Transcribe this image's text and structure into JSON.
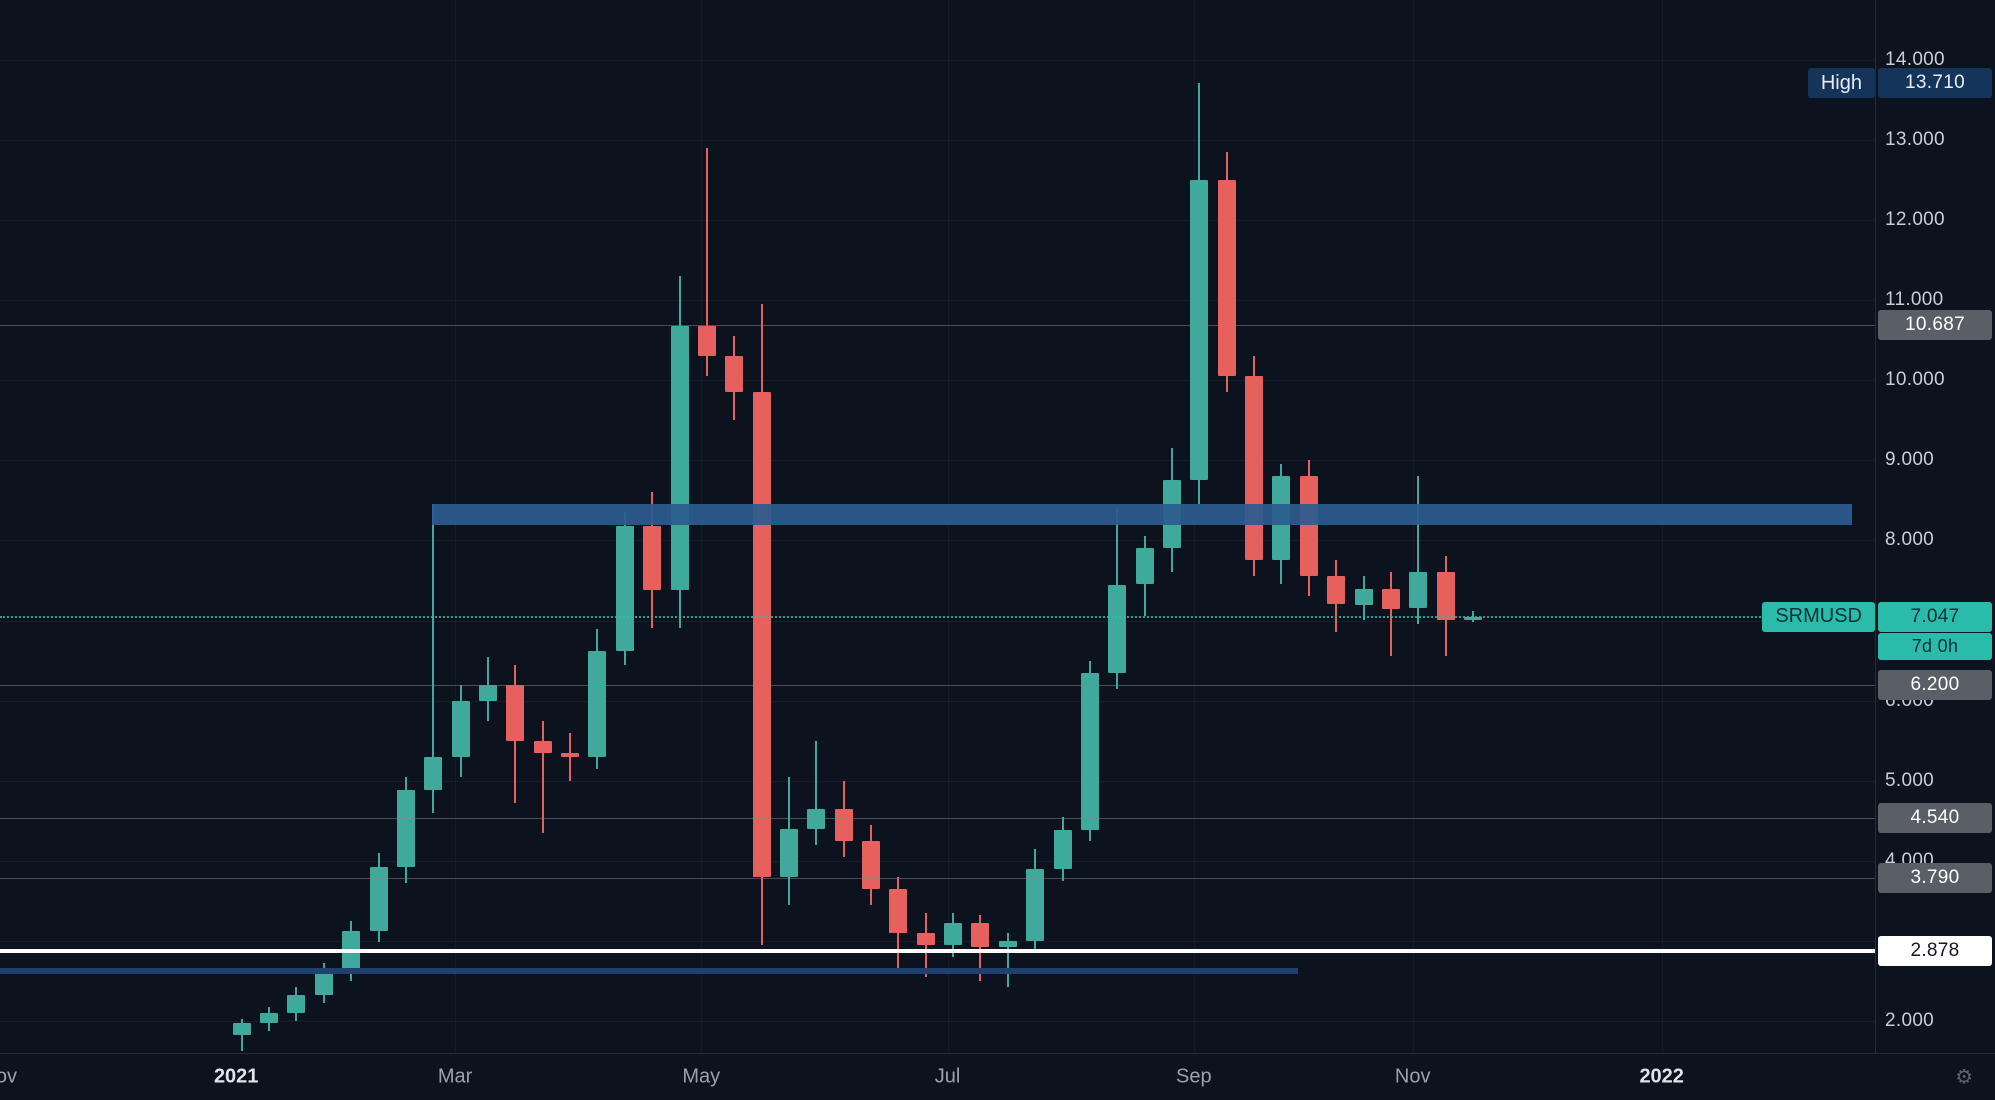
{
  "meta": {
    "symbol_label": "SRMUSD",
    "countdown_label": "7d 0h",
    "high_marker_label": "High"
  },
  "icons": {
    "settings": "⚙"
  },
  "colors": {
    "background": "#0d121f",
    "up": "#3fa99c",
    "down": "#e6615e",
    "zone": "#2b5c8f",
    "white_line": "#ffffff",
    "navy_line": "#20416e",
    "current": "#2abbaa",
    "current_text": "#073036",
    "high_badge": "#143459",
    "high_text": "#e8edf5",
    "gray_badge": "#5a5e66",
    "gray_text": "#ffffff",
    "white_badge": "#ffffff",
    "white_badge_text": "#131722",
    "level_line": "rgba(130,134,144,0.5)"
  },
  "price_axis": {
    "labels": [
      {
        "text": "14.000",
        "price": 14
      },
      {
        "text": "13.000",
        "price": 13
      },
      {
        "text": "12.000",
        "price": 12
      },
      {
        "text": "11.000",
        "price": 11
      },
      {
        "text": "10.000",
        "price": 10
      },
      {
        "text": "9.000",
        "price": 9
      },
      {
        "text": "8.000",
        "price": 8
      },
      {
        "text": "6.000",
        "price": 6
      },
      {
        "text": "5.000",
        "price": 5
      },
      {
        "text": "4.000",
        "price": 4
      },
      {
        "text": "2.000",
        "price": 2
      }
    ],
    "badges": [
      {
        "text": "13.710",
        "price": 13.71,
        "style": "high"
      },
      {
        "text": "10.687",
        "price": 10.687,
        "style": "gray"
      },
      {
        "text": "7.047",
        "price": 7.047,
        "style": "current"
      },
      {
        "text": "6.200",
        "price": 6.2,
        "style": "gray"
      },
      {
        "text": "4.540",
        "price": 4.54,
        "style": "gray"
      },
      {
        "text": "3.790",
        "price": 3.79,
        "style": "gray"
      },
      {
        "text": "2.878",
        "price": 2.878,
        "style": "white"
      }
    ],
    "countdown": {
      "text": "7d 0h",
      "below_price": 7.047,
      "style": "current"
    }
  },
  "time_axis": {
    "labels": [
      {
        "text": "ov",
        "index": -8.6,
        "major": false
      },
      {
        "text": "2021",
        "index": -0.2,
        "major": true
      },
      {
        "text": "Mar",
        "index": 7.8,
        "major": false
      },
      {
        "text": "May",
        "index": 16.8,
        "major": false
      },
      {
        "text": "Jul",
        "index": 25.8,
        "major": false
      },
      {
        "text": "Sep",
        "index": 34.8,
        "major": false
      },
      {
        "text": "Nov",
        "index": 42.8,
        "major": false
      },
      {
        "text": "2022",
        "index": 51.9,
        "major": true
      }
    ]
  },
  "floating_labels": [
    {
      "text": "High",
      "price": 13.71,
      "style": "high"
    },
    {
      "text": "SRMUSD",
      "price": 7.047,
      "style": "current"
    }
  ],
  "chart_data": {
    "type": "candlestick",
    "symbol": "SRMUSD",
    "current_price": 7.047,
    "session_high": 13.71,
    "price_axis_range": [
      1.55,
      14.25
    ],
    "visible_period": "Nov 2020 - Jan 2022 (weekly candles)",
    "grid_levels": [
      2,
      3,
      4,
      5,
      6,
      7,
      8,
      9,
      10,
      11,
      12,
      13,
      14
    ],
    "candles": [
      {
        "o": 1.82,
        "h": 2.02,
        "l": 1.62,
        "c": 1.98
      },
      {
        "o": 1.98,
        "h": 2.18,
        "l": 1.88,
        "c": 2.1
      },
      {
        "o": 2.1,
        "h": 2.42,
        "l": 2.0,
        "c": 2.32
      },
      {
        "o": 2.32,
        "h": 2.72,
        "l": 2.22,
        "c": 2.6
      },
      {
        "o": 2.6,
        "h": 3.25,
        "l": 2.5,
        "c": 3.12
      },
      {
        "o": 3.12,
        "h": 4.1,
        "l": 2.98,
        "c": 3.92
      },
      {
        "o": 3.92,
        "h": 5.05,
        "l": 3.72,
        "c": 4.88
      },
      {
        "o": 4.88,
        "h": 8.45,
        "l": 4.6,
        "c": 5.3
      },
      {
        "o": 5.3,
        "h": 6.2,
        "l": 5.05,
        "c": 6.0
      },
      {
        "o": 6.0,
        "h": 6.55,
        "l": 5.75,
        "c": 6.2
      },
      {
        "o": 6.2,
        "h": 6.45,
        "l": 4.72,
        "c": 5.5
      },
      {
        "o": 5.5,
        "h": 5.75,
        "l": 4.35,
        "c": 5.35
      },
      {
        "o": 5.35,
        "h": 5.6,
        "l": 5.0,
        "c": 5.3
      },
      {
        "o": 5.3,
        "h": 6.9,
        "l": 5.15,
        "c": 6.62
      },
      {
        "o": 6.62,
        "h": 8.35,
        "l": 6.45,
        "c": 8.18
      },
      {
        "o": 8.18,
        "h": 8.6,
        "l": 6.9,
        "c": 7.38
      },
      {
        "o": 7.38,
        "h": 11.3,
        "l": 6.9,
        "c": 10.68
      },
      {
        "o": 10.68,
        "h": 12.9,
        "l": 10.05,
        "c": 10.3
      },
      {
        "o": 10.3,
        "h": 10.55,
        "l": 9.5,
        "c": 9.85
      },
      {
        "o": 9.85,
        "h": 10.95,
        "l": 2.95,
        "c": 3.8
      },
      {
        "o": 3.8,
        "h": 5.05,
        "l": 3.45,
        "c": 4.4
      },
      {
        "o": 4.4,
        "h": 5.5,
        "l": 4.2,
        "c": 4.65
      },
      {
        "o": 4.65,
        "h": 5.0,
        "l": 4.05,
        "c": 4.25
      },
      {
        "o": 4.25,
        "h": 4.45,
        "l": 3.45,
        "c": 3.65
      },
      {
        "o": 3.65,
        "h": 3.8,
        "l": 2.62,
        "c": 3.1
      },
      {
        "o": 3.1,
        "h": 3.35,
        "l": 2.55,
        "c": 2.95
      },
      {
        "o": 2.95,
        "h": 3.35,
        "l": 2.8,
        "c": 3.22
      },
      {
        "o": 3.22,
        "h": 3.32,
        "l": 2.5,
        "c": 2.92
      },
      {
        "o": 2.92,
        "h": 3.1,
        "l": 2.42,
        "c": 3.0
      },
      {
        "o": 3.0,
        "h": 4.15,
        "l": 2.88,
        "c": 3.9
      },
      {
        "o": 3.9,
        "h": 4.55,
        "l": 3.75,
        "c": 4.38
      },
      {
        "o": 4.38,
        "h": 6.5,
        "l": 4.25,
        "c": 6.35
      },
      {
        "o": 6.35,
        "h": 8.4,
        "l": 6.15,
        "c": 7.45
      },
      {
        "o": 7.45,
        "h": 8.05,
        "l": 7.05,
        "c": 7.9
      },
      {
        "o": 7.9,
        "h": 9.15,
        "l": 7.6,
        "c": 8.75
      },
      {
        "o": 8.75,
        "h": 13.71,
        "l": 8.45,
        "c": 12.5
      },
      {
        "o": 12.5,
        "h": 12.85,
        "l": 9.85,
        "c": 10.05
      },
      {
        "o": 10.05,
        "h": 10.3,
        "l": 7.55,
        "c": 7.75
      },
      {
        "o": 7.75,
        "h": 8.95,
        "l": 7.45,
        "c": 8.8
      },
      {
        "o": 8.8,
        "h": 9.0,
        "l": 7.3,
        "c": 7.55
      },
      {
        "o": 7.55,
        "h": 7.75,
        "l": 6.85,
        "c": 7.2
      },
      {
        "o": 7.2,
        "h": 7.55,
        "l": 7.0,
        "c": 7.4
      },
      {
        "o": 7.4,
        "h": 7.6,
        "l": 6.55,
        "c": 7.15
      },
      {
        "o": 7.15,
        "h": 8.8,
        "l": 6.95,
        "c": 7.6
      },
      {
        "o": 7.6,
        "h": 7.8,
        "l": 6.55,
        "c": 7.0
      },
      {
        "o": 7.0,
        "h": 7.12,
        "l": 6.98,
        "c": 7.047
      }
    ],
    "zones": [
      {
        "name": "resistance-zone",
        "price_top": 8.45,
        "price_bottom": 8.19,
        "from_candle": 7,
        "to_fraction": 0.987,
        "color_key": "zone",
        "opacity": 0.92
      }
    ],
    "price_lines": [
      {
        "name": "level-10.687",
        "price": 10.687,
        "kind": "level",
        "from": 0,
        "to": 1
      },
      {
        "name": "level-6.200",
        "price": 6.2,
        "kind": "level",
        "from": 0,
        "to": 1
      },
      {
        "name": "level-4.540",
        "price": 4.54,
        "kind": "level",
        "from": 0,
        "to": 1
      },
      {
        "name": "level-3.790",
        "price": 3.79,
        "kind": "level",
        "from": 0,
        "to": 1
      },
      {
        "name": "support-line-2.878",
        "price": 2.878,
        "kind": "white",
        "from": 0,
        "to": 1
      },
      {
        "name": "support-ray-2.62",
        "price": 2.62,
        "kind": "navy",
        "from": 0,
        "to": 0.692
      },
      {
        "name": "current-price-line",
        "price": 7.047,
        "kind": "current-dotted",
        "from": 0,
        "to": 1
      }
    ]
  }
}
